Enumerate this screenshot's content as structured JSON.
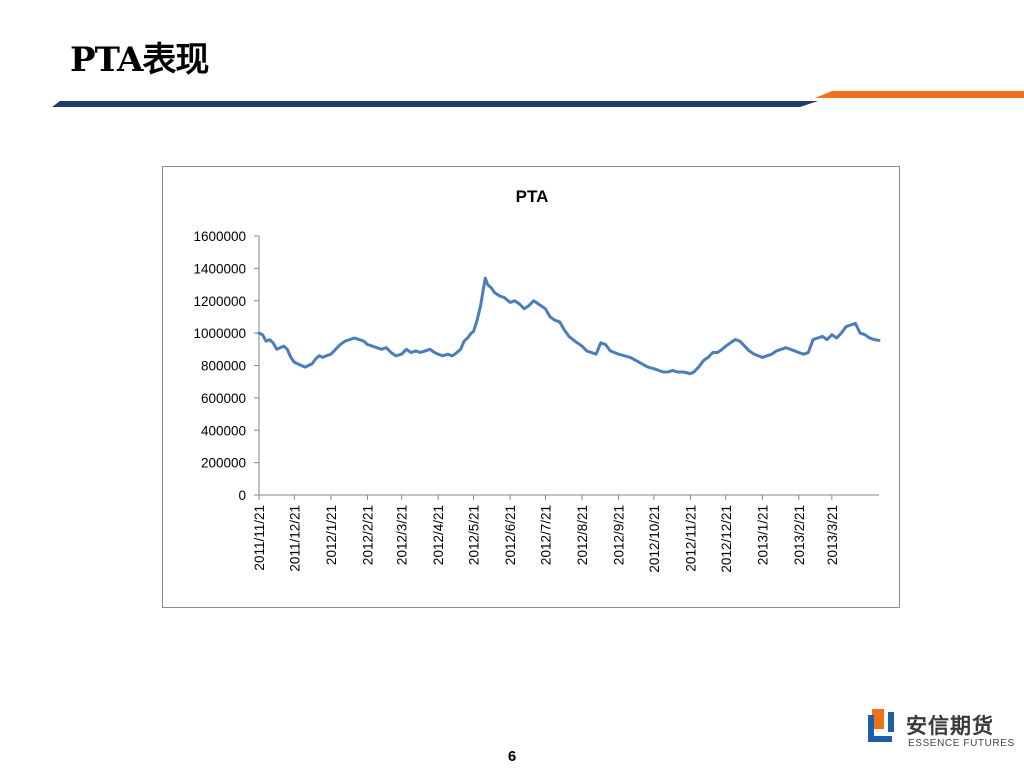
{
  "slide": {
    "title": "PTA表现",
    "page_number": "6"
  },
  "logo": {
    "name_cn": "安信期货",
    "name_en": "ESSENCE FUTURES"
  },
  "colors": {
    "series_line": "#4a7ebb",
    "header_navy": "#1f3b6e",
    "header_orange": "#f07020",
    "logo_orange": "#f07020",
    "logo_blue": "#1f5fa8"
  },
  "chart_data": {
    "type": "line",
    "title": "PTA",
    "xlabel": "",
    "ylabel": "",
    "ylim": [
      0,
      1600000
    ],
    "yticks": [
      0,
      200000,
      400000,
      600000,
      800000,
      1000000,
      1200000,
      1400000,
      1600000
    ],
    "ytick_labels": [
      "0",
      "200000",
      "400000",
      "600000",
      "800000",
      "1000000",
      "1200000",
      "1400000",
      "1600000"
    ],
    "xtick_labels": [
      "2011/11/21",
      "2011/12/21",
      "2012/1/21",
      "2012/2/21",
      "2012/3/21",
      "2012/4/21",
      "2012/5/21",
      "2012/6/21",
      "2012/7/21",
      "2012/8/21",
      "2012/9/21",
      "2012/10/21",
      "2012/11/21",
      "2012/12/21",
      "2013/1/21",
      "2013/2/21",
      "2013/3/21"
    ],
    "xlim": [
      "2011-11-21",
      "2013-04-30"
    ],
    "legend": "none",
    "grid": false,
    "series": [
      {
        "x": [
          "2011-11-21",
          "2011-11-24",
          "2011-11-27",
          "2011-11-30",
          "2011-12-03",
          "2011-12-06",
          "2011-12-09",
          "2011-12-12",
          "2011-12-15",
          "2011-12-18",
          "2011-12-21",
          "2011-12-24",
          "2011-12-27",
          "2011-12-30",
          "2012-01-02",
          "2012-01-05",
          "2012-01-08",
          "2012-01-11",
          "2012-01-14",
          "2012-01-17",
          "2012-01-21",
          "2012-01-25",
          "2012-01-29",
          "2012-02-02",
          "2012-02-06",
          "2012-02-10",
          "2012-02-14",
          "2012-02-18",
          "2012-02-21",
          "2012-02-25",
          "2012-02-29",
          "2012-03-04",
          "2012-03-08",
          "2012-03-12",
          "2012-03-16",
          "2012-03-21",
          "2012-03-25",
          "2012-03-29",
          "2012-04-02",
          "2012-04-06",
          "2012-04-10",
          "2012-04-14",
          "2012-04-18",
          "2012-04-21",
          "2012-04-25",
          "2012-04-29",
          "2012-05-03",
          "2012-05-07",
          "2012-05-10",
          "2012-05-13",
          "2012-05-16",
          "2012-05-19",
          "2012-05-21",
          "2012-05-24",
          "2012-05-27",
          "2012-05-29",
          "2012-05-31",
          "2012-06-02",
          "2012-06-05",
          "2012-06-08",
          "2012-06-12",
          "2012-06-16",
          "2012-06-21",
          "2012-06-25",
          "2012-06-29",
          "2012-07-03",
          "2012-07-07",
          "2012-07-11",
          "2012-07-15",
          "2012-07-21",
          "2012-07-25",
          "2012-07-29",
          "2012-08-02",
          "2012-08-06",
          "2012-08-10",
          "2012-08-15",
          "2012-08-21",
          "2012-08-25",
          "2012-08-29",
          "2012-09-02",
          "2012-09-06",
          "2012-09-10",
          "2012-09-14",
          "2012-09-21",
          "2012-09-26",
          "2012-10-01",
          "2012-10-06",
          "2012-10-11",
          "2012-10-16",
          "2012-10-21",
          "2012-10-25",
          "2012-10-29",
          "2012-11-02",
          "2012-11-06",
          "2012-11-10",
          "2012-11-15",
          "2012-11-21",
          "2012-11-24",
          "2012-11-28",
          "2012-12-02",
          "2012-12-06",
          "2012-12-10",
          "2012-12-14",
          "2012-12-18",
          "2012-12-21",
          "2012-12-25",
          "2012-12-29",
          "2013-01-02",
          "2013-01-06",
          "2013-01-10",
          "2013-01-14",
          "2013-01-21",
          "2013-01-25",
          "2013-01-29",
          "2013-02-02",
          "2013-02-06",
          "2013-02-10",
          "2013-02-14",
          "2013-02-21",
          "2013-02-25",
          "2013-03-01",
          "2013-03-05",
          "2013-03-09",
          "2013-03-13",
          "2013-03-17",
          "2013-03-21",
          "2013-03-25",
          "2013-03-29",
          "2013-04-02",
          "2013-04-06",
          "2013-04-10",
          "2013-04-14",
          "2013-04-18",
          "2013-04-22",
          "2013-04-26",
          "2013-04-30"
        ],
        "values": [
          1000000,
          990000,
          950000,
          960000,
          940000,
          900000,
          910000,
          920000,
          900000,
          850000,
          820000,
          810000,
          800000,
          790000,
          800000,
          810000,
          840000,
          860000,
          850000,
          860000,
          870000,
          900000,
          930000,
          950000,
          960000,
          970000,
          960000,
          950000,
          930000,
          920000,
          910000,
          900000,
          910000,
          880000,
          860000,
          870000,
          900000,
          880000,
          890000,
          880000,
          890000,
          900000,
          880000,
          870000,
          860000,
          870000,
          860000,
          880000,
          900000,
          950000,
          970000,
          1000000,
          1010000,
          1080000,
          1170000,
          1260000,
          1340000,
          1300000,
          1280000,
          1250000,
          1230000,
          1220000,
          1190000,
          1200000,
          1180000,
          1150000,
          1170000,
          1200000,
          1180000,
          1150000,
          1100000,
          1080000,
          1070000,
          1020000,
          980000,
          950000,
          920000,
          890000,
          880000,
          870000,
          940000,
          930000,
          890000,
          870000,
          860000,
          850000,
          830000,
          810000,
          790000,
          780000,
          770000,
          760000,
          760000,
          770000,
          760000,
          760000,
          750000,
          760000,
          790000,
          830000,
          850000,
          880000,
          880000,
          900000,
          920000,
          940000,
          960000,
          950000,
          920000,
          890000,
          870000,
          850000,
          860000,
          870000,
          890000,
          900000,
          910000,
          900000,
          880000,
          870000,
          880000,
          960000,
          970000,
          980000,
          960000,
          990000,
          970000,
          1000000,
          1040000,
          1050000,
          1060000,
          1000000,
          990000,
          970000,
          960000,
          955000
        ]
      }
    ]
  }
}
